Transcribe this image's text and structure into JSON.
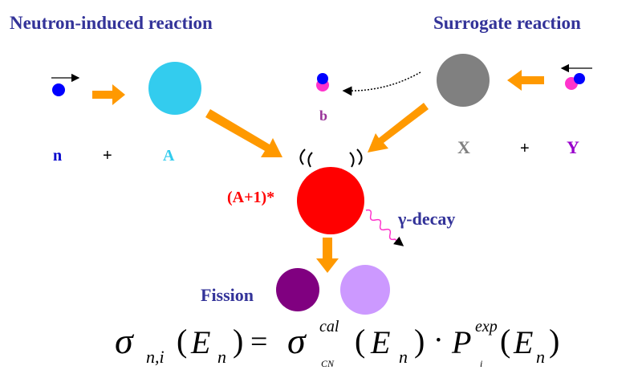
{
  "header": {
    "left_title": "Neutron-induced reaction",
    "right_title": "Surrogate reaction"
  },
  "labels": {
    "n": "n",
    "plus_left": "+",
    "A": "A",
    "b": "b",
    "X": "X",
    "plus_right": "+",
    "Y": "Y",
    "compound": "(A+1)*",
    "gamma": "γ-decay",
    "fission": "Fission"
  },
  "formula": [
    "σ",
    "n,i",
    "(",
    "E",
    "n",
    ")",
    "=",
    "σ",
    "cal",
    "CN",
    "(",
    "E",
    "n",
    ")",
    "·",
    "P",
    "exp",
    "i",
    "(",
    "E",
    "n",
    ")"
  ]
}
